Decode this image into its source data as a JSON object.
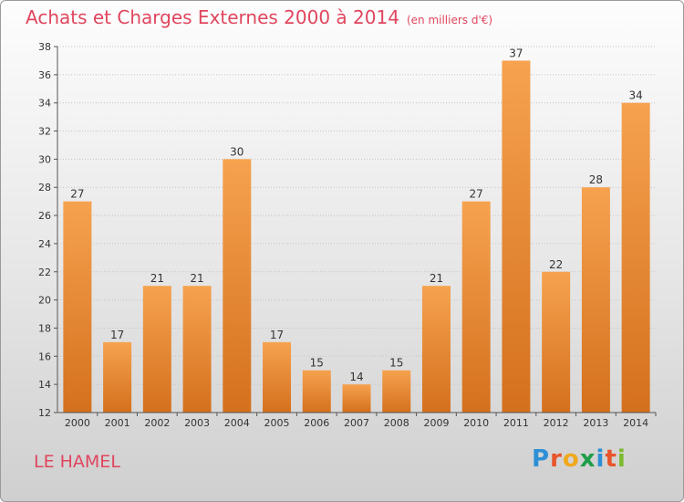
{
  "header": {
    "title": "Achats et Charges Externes 2000 à 2014",
    "unit": "(en milliers d'€)"
  },
  "footer": {
    "place": "LE HAMEL",
    "logo": "Proxiti"
  },
  "colors": {
    "bar_top": "#f6a24f",
    "bar_bottom": "#d4701d",
    "title": "#e0465e"
  },
  "chart_data": {
    "type": "bar",
    "title": "Achats et Charges Externes 2000 à 2014",
    "categories": [
      "2000",
      "2001",
      "2002",
      "2003",
      "2004",
      "2005",
      "2006",
      "2007",
      "2008",
      "2009",
      "2010",
      "2011",
      "2012",
      "2013",
      "2014"
    ],
    "values": [
      27,
      17,
      21,
      21,
      30,
      17,
      15,
      14,
      15,
      21,
      27,
      37,
      22,
      28,
      34
    ],
    "ylim": [
      12,
      38
    ],
    "yticks": [
      12,
      14,
      16,
      18,
      20,
      22,
      24,
      26,
      28,
      30,
      32,
      34,
      36,
      38
    ],
    "grid": true
  }
}
